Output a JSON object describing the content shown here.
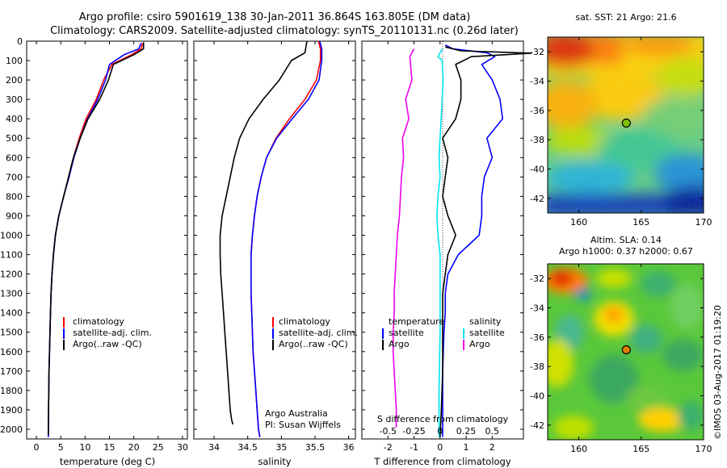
{
  "figure": {
    "title_line1": "Argo profile: csiro 5901619_138 30-Jan-2011 36.864S 163.805E (DM data)",
    "title_line2": "Climatology: CARS2009. Satellite-adjusted climatology: synTS_20110131.nc (0.26d later)",
    "credit": "Argo Australia",
    "pi": "PI: Susan Wijffels",
    "stamp": "©IMOS 03-Aug-2017 01:19:20"
  },
  "colors": {
    "climatology": "#ff0000",
    "satellite": "#0000ff",
    "argo": "#000000",
    "satellite_salinity": "#00e5ee",
    "argo_salinity": "#ee00ee"
  },
  "chart_data": [
    {
      "type": "line",
      "name": "temperature-profile",
      "xlabel": "temperature (deg C)",
      "ylabel": "",
      "xlim": [
        -2,
        31
      ],
      "ylim": [
        2050,
        0
      ],
      "xticks": [
        0,
        5,
        10,
        15,
        20,
        25,
        30
      ],
      "yticks": [
        0,
        100,
        200,
        300,
        400,
        500,
        600,
        700,
        800,
        900,
        1000,
        1100,
        1200,
        1300,
        1400,
        1500,
        1600,
        1700,
        1800,
        1900,
        2000
      ],
      "legend": {
        "position": "lower-middle",
        "entries": [
          "climatology",
          "satellite-adj. clim.",
          "Argo(..raw -QC)"
        ]
      },
      "series": [
        {
          "name": "climatology",
          "color": "#ff0000",
          "x": [
            21.8,
            21.5,
            19.5,
            15.5,
            13.8,
            12.3,
            10.2,
            8.8,
            7.6,
            6.6,
            5.6,
            4.6,
            3.9,
            3.5,
            3.2,
            3.0,
            2.9,
            2.8,
            2.7,
            2.6,
            2.55,
            2.5,
            2.45
          ],
          "y": [
            10,
            40,
            70,
            120,
            200,
            300,
            400,
            500,
            600,
            700,
            800,
            900,
            1000,
            1100,
            1200,
            1300,
            1400,
            1500,
            1600,
            1700,
            1800,
            1900,
            2040
          ]
        },
        {
          "name": "satellite-adj. clim.",
          "color": "#0000ff",
          "x": [
            21.5,
            21.0,
            18.0,
            15.0,
            14.2,
            12.6,
            10.5,
            9.0,
            7.7,
            6.7,
            5.6,
            4.6,
            3.9,
            3.5,
            3.2,
            3.0,
            2.9,
            2.8,
            2.7,
            2.6,
            2.55,
            2.5,
            2.45
          ],
          "y": [
            10,
            40,
            70,
            120,
            200,
            300,
            400,
            500,
            600,
            700,
            800,
            900,
            1000,
            1100,
            1200,
            1300,
            1400,
            1500,
            1600,
            1700,
            1800,
            1900,
            2040
          ]
        },
        {
          "name": "Argo(..raw -QC)",
          "color": "#000000",
          "x": [
            22.0,
            22.0,
            20.0,
            15.8,
            14.8,
            13.0,
            10.6,
            9.0,
            7.6,
            6.6,
            5.6,
            4.6,
            3.9,
            3.5,
            3.2,
            3.0,
            2.9,
            2.8,
            2.7,
            2.6,
            2.55,
            2.5,
            2.45
          ],
          "y": [
            5,
            40,
            70,
            120,
            200,
            300,
            400,
            500,
            600,
            700,
            800,
            900,
            1000,
            1100,
            1200,
            1300,
            1400,
            1500,
            1600,
            1700,
            1800,
            1900,
            2030
          ]
        }
      ]
    },
    {
      "type": "line",
      "name": "salinity-profile",
      "xlabel": "salinity",
      "ylabel": "",
      "xlim": [
        33.7,
        36.1
      ],
      "ylim": [
        2050,
        0
      ],
      "xticks": [
        34,
        34.5,
        35,
        35.5,
        36
      ],
      "legend": {
        "position": "lower-right",
        "entries": [
          "climatology",
          "satellite-adj. clim.",
          "Argo(..raw -QC)"
        ]
      },
      "series": [
        {
          "name": "climatology",
          "color": "#ff0000",
          "x": [
            35.55,
            35.58,
            35.58,
            35.52,
            35.35,
            35.12,
            34.92,
            34.78,
            34.7,
            34.64,
            34.6,
            34.57,
            34.55,
            34.55,
            34.55,
            34.56,
            34.57,
            34.58,
            34.6,
            34.62,
            34.64,
            34.66,
            34.68
          ],
          "y": [
            0,
            40,
            100,
            200,
            300,
            400,
            500,
            600,
            700,
            800,
            900,
            1000,
            1100,
            1200,
            1300,
            1400,
            1500,
            1600,
            1700,
            1800,
            1900,
            2000,
            2040
          ]
        },
        {
          "name": "satellite-adj. clim.",
          "color": "#0000ff",
          "x": [
            35.57,
            35.6,
            35.6,
            35.56,
            35.4,
            35.16,
            34.93,
            34.78,
            34.7,
            34.64,
            34.6,
            34.57,
            34.55,
            34.55,
            34.55,
            34.56,
            34.57,
            34.58,
            34.6,
            34.62,
            34.64,
            34.66,
            34.68
          ],
          "y": [
            0,
            40,
            100,
            200,
            300,
            400,
            500,
            600,
            700,
            800,
            900,
            1000,
            1100,
            1200,
            1300,
            1400,
            1500,
            1600,
            1700,
            1800,
            1900,
            2000,
            2040
          ]
        },
        {
          "name": "Argo(..raw -QC)",
          "color": "#000000",
          "x": [
            35.38,
            35.35,
            35.15,
            34.97,
            34.73,
            34.52,
            34.38,
            34.3,
            34.24,
            34.18,
            34.12,
            34.09,
            34.09,
            34.1,
            34.12,
            34.14,
            34.16,
            34.18,
            34.2,
            34.22,
            34.24,
            34.26,
            34.28
          ],
          "y": [
            0,
            60,
            100,
            200,
            300,
            400,
            500,
            600,
            700,
            800,
            900,
            1000,
            1100,
            1200,
            1300,
            1400,
            1500,
            1600,
            1700,
            1800,
            1900,
            1950,
            1975
          ]
        }
      ]
    },
    {
      "type": "line",
      "name": "difference-profile",
      "xlabel": "T difference from climatology",
      "xlabel_top": "S difference from climatology",
      "xlim": [
        -3,
        3.2
      ],
      "ylim": [
        2050,
        0
      ],
      "xticks": [
        -2,
        -1,
        0,
        1,
        2
      ],
      "xticks_top": [
        -0.5,
        -0.25,
        0,
        0.25,
        0.5
      ],
      "legend_temperature": [
        "temperature",
        "satellite",
        "Argo"
      ],
      "legend_salinity": [
        "salinity",
        "satellite",
        "Argo"
      ],
      "series": [
        {
          "name": "T satellite",
          "color": "#0000ff",
          "x": [
            0.2,
            0.5,
            1.8,
            2.1,
            1.6,
            2.0,
            2.3,
            2.4,
            1.8,
            2.0,
            1.7,
            1.6,
            1.6,
            1.5,
            0.7,
            0.3,
            0.2,
            0.2,
            0.15,
            0.1,
            0.1,
            0.1
          ],
          "y": [
            20,
            40,
            60,
            80,
            120,
            200,
            300,
            400,
            500,
            600,
            700,
            800,
            900,
            1000,
            1100,
            1200,
            1300,
            1400,
            1500,
            1700,
            1900,
            2040
          ]
        },
        {
          "name": "T Argo",
          "color": "#000000",
          "x": [
            0.2,
            0.8,
            3.5,
            1.2,
            0.6,
            0.8,
            0.8,
            0.6,
            0.1,
            0.3,
            0.2,
            0.1,
            0.3,
            0.6,
            0.3,
            0.2,
            0.1,
            0.1,
            0.1,
            0.05,
            0.0
          ],
          "y": [
            30,
            50,
            62,
            80,
            120,
            200,
            300,
            400,
            500,
            600,
            700,
            800,
            900,
            1000,
            1100,
            1200,
            1300,
            1500,
            1700,
            1900,
            2040
          ]
        },
        {
          "name": "S satellite",
          "color": "#00e5ee",
          "x": [
            0.02,
            -0.02,
            0.02,
            0.03,
            0.02,
            0.01,
            0.0,
            -0.01,
            0.0,
            -0.02,
            -0.03,
            -0.02,
            0.0,
            0.0,
            0.0,
            -0.01,
            -0.01
          ],
          "y": [
            40,
            80,
            100,
            200,
            300,
            400,
            500,
            600,
            700,
            800,
            900,
            1000,
            1100,
            1200,
            1500,
            1800,
            2040
          ]
        },
        {
          "name": "S Argo",
          "color": "#ee00ee",
          "x": [
            -0.25,
            -0.29,
            -0.27,
            -0.33,
            -0.3,
            -0.36,
            -0.35,
            -0.37,
            -0.38,
            -0.39,
            -0.41,
            -0.42,
            -0.43,
            -0.44,
            -0.44,
            -0.45,
            -0.45,
            -0.44,
            -0.43,
            -0.42,
            -0.42
          ],
          "y": [
            40,
            80,
            200,
            300,
            400,
            500,
            600,
            700,
            800,
            900,
            1000,
            1100,
            1200,
            1300,
            1400,
            1500,
            1600,
            1700,
            1800,
            1900,
            1990
          ]
        }
      ]
    },
    {
      "type": "heatmap",
      "name": "sst-map",
      "title": "sat. SST: 21 Argo: 21.6",
      "xlim": [
        157.5,
        170
      ],
      "ylim": [
        -43,
        -31
      ],
      "xticks": [
        160,
        165,
        170
      ],
      "yticks": [
        -32,
        -34,
        -36,
        -38,
        -40,
        -42
      ],
      "profile_location": {
        "lon": 163.805,
        "lat": -36.864
      }
    },
    {
      "type": "heatmap",
      "name": "sla-map",
      "title_line1": "Altim. SLA: 0.14",
      "title_line2": "Argo h1000: 0.37 h2000: 0.67",
      "xlim": [
        157.5,
        170
      ],
      "ylim": [
        -43,
        -31
      ],
      "xticks": [
        160,
        165,
        170
      ],
      "yticks": [
        -32,
        -34,
        -36,
        -38,
        -40,
        -42
      ],
      "profile_location": {
        "lon": 163.805,
        "lat": -36.864
      }
    }
  ]
}
